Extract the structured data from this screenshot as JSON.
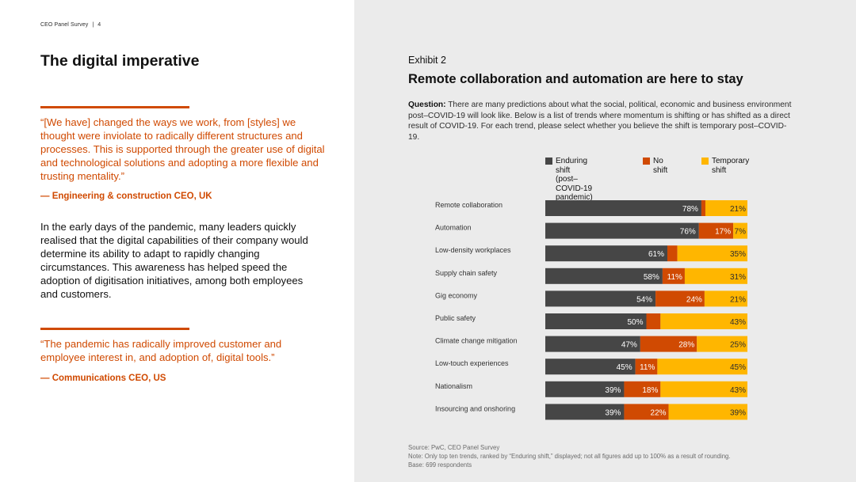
{
  "header": {
    "survey": "CEO Panel Survey",
    "separator": "|",
    "page": "4"
  },
  "left": {
    "title": "The digital imperative",
    "quote1": "“[We have] changed the ways we work, from [styles] we thought were inviolate to radically different structures and processes. This is supported through the greater use of digital and technological solutions and adopting a more flexible and trusting mentality.”",
    "attrib1": "— Engineering & construction CEO, UK",
    "body": "In the early days of the pandemic, many leaders quickly realised that the digital capabilities of their company would determine its ability to adapt to rapidly changing circumstances. This awareness has helped speed the adoption of digitisation initiatives, among both employees and customers.",
    "quote2": "“The pandemic has radically improved customer and employee interest in, and adoption of, digital tools.”",
    "attrib2": "— Communications CEO, US"
  },
  "exhibit": {
    "label": "Exhibit 2",
    "question_label": "Question:",
    "question_text": " There are many predictions about what the social, political, economic and business environment post–COVID-19 will look like. Below is a list of trends where momentum is shifting or has shifted as a direct result of COVID-19. For each trend, please select whether you believe the shift is temporary post–COVID-19."
  },
  "colors": {
    "enduring": "#464646",
    "no_shift": "#d04a02",
    "temporary": "#ffb600",
    "accent": "#d04a02"
  },
  "chart_data": {
    "type": "bar",
    "orientation": "horizontal",
    "stacked": true,
    "title": "Remote collaboration and automation are here to stay",
    "categories": [
      "Remote collaboration",
      "Automation",
      "Low-density workplaces",
      "Supply chain safety",
      "Gig economy",
      "Public safety",
      "Climate change mitigation",
      "Low-touch experiences",
      "Nationalism",
      "Insourcing and onshoring"
    ],
    "series": [
      {
        "name": "Enduring shift (post–COVID-19 pandemic)",
        "legend_lines": [
          "Enduring shift",
          "(post–COVID-19",
          "pandemic)"
        ],
        "color": "#464646",
        "values": [
          78,
          76,
          61,
          58,
          54,
          50,
          47,
          45,
          39,
          39
        ]
      },
      {
        "name": "No shift",
        "legend_lines": [
          "No shift"
        ],
        "color": "#d04a02",
        "values": [
          2,
          17,
          5,
          11,
          24,
          7,
          28,
          11,
          18,
          22
        ]
      },
      {
        "name": "Temporary shift",
        "legend_lines": [
          "Temporary",
          "shift"
        ],
        "color": "#ffb600",
        "values": [
          21,
          7,
          35,
          31,
          21,
          43,
          25,
          45,
          43,
          39
        ]
      }
    ],
    "legend_position": "top",
    "grid": false
  },
  "footnotes": {
    "source": "Source: PwC, CEO Panel Survey",
    "note": "Note: Only top ten trends, ranked by “Enduring shift,” displayed; not all figures add up to 100% as a result of rounding.",
    "base": "Base: 699 respondents"
  }
}
